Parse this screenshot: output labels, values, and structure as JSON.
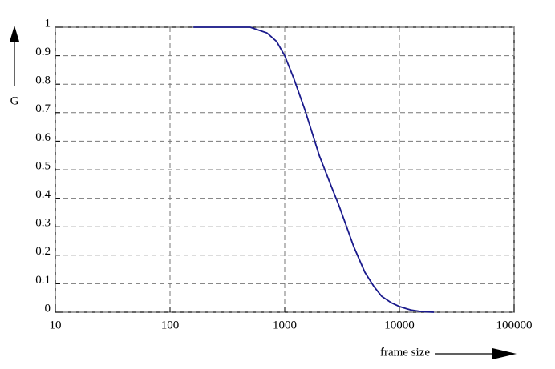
{
  "chart_data": {
    "type": "line",
    "x_label": "frame size",
    "y_label": "G",
    "xscale": "log",
    "grid": true,
    "xlim": [
      10,
      100000
    ],
    "xticks": [
      10,
      100,
      1000,
      10000,
      100000
    ],
    "ylim": [
      0,
      1
    ],
    "yticks": [
      0,
      0.1,
      0.2,
      0.3,
      0.4,
      0.5,
      0.6,
      0.7,
      0.8,
      0.9,
      1
    ],
    "series": [
      {
        "color": "#1a1a8c",
        "x": [
          160,
          300,
          500,
          700,
          850,
          1000,
          1200,
          1500,
          2000,
          2500,
          3000,
          4000,
          5000,
          6000,
          7000,
          8500,
          10000,
          12500,
          15000,
          20000
        ],
        "values": [
          1,
          1,
          1,
          0.98,
          0.95,
          0.9,
          0.82,
          0.71,
          0.55,
          0.45,
          0.37,
          0.23,
          0.14,
          0.09,
          0.056,
          0.033,
          0.02,
          0.008,
          0.003,
          0
        ]
      }
    ]
  }
}
